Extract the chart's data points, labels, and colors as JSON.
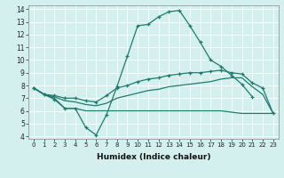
{
  "xlabel": "Humidex (Indice chaleur)",
  "xlim": [
    -0.5,
    23.5
  ],
  "ylim": [
    3.8,
    14.3
  ],
  "yticks": [
    4,
    5,
    6,
    7,
    8,
    9,
    10,
    11,
    12,
    13,
    14
  ],
  "xticks": [
    0,
    1,
    2,
    3,
    4,
    5,
    6,
    7,
    8,
    9,
    10,
    11,
    12,
    13,
    14,
    15,
    16,
    17,
    18,
    19,
    20,
    21,
    22,
    23
  ],
  "bg_color": "#d4f0ee",
  "line_color": "#1e7b6e",
  "grid_color": "#ffffff",
  "lines": [
    {
      "x": [
        0,
        1,
        2,
        3,
        4,
        5,
        6,
        7,
        8,
        9,
        10,
        11,
        12,
        13,
        14,
        15,
        16,
        17,
        18,
        19,
        20,
        21
      ],
      "y": [
        7.8,
        7.3,
        6.9,
        6.2,
        6.2,
        4.7,
        4.1,
        5.7,
        7.9,
        10.3,
        12.7,
        12.8,
        13.4,
        13.8,
        13.9,
        12.7,
        11.4,
        10.0,
        9.5,
        8.8,
        8.1,
        7.1
      ],
      "marker": "+"
    },
    {
      "x": [
        0,
        1,
        2,
        3,
        4,
        5,
        6,
        7,
        8,
        9,
        10,
        11,
        12,
        13,
        14,
        15,
        16,
        17,
        18,
        19,
        20,
        21,
        22,
        23
      ],
      "y": [
        7.8,
        7.3,
        7.1,
        6.8,
        6.7,
        6.5,
        6.4,
        6.6,
        7.0,
        7.2,
        7.4,
        7.6,
        7.7,
        7.9,
        8.0,
        8.1,
        8.2,
        8.3,
        8.5,
        8.6,
        8.6,
        7.9,
        7.3,
        5.8
      ],
      "marker": null
    },
    {
      "x": [
        0,
        1,
        2,
        3,
        4,
        5,
        6,
        7,
        8,
        9,
        10,
        11,
        12,
        13,
        14,
        15,
        16,
        17,
        18,
        19,
        20,
        21,
        22,
        23
      ],
      "y": [
        7.8,
        7.3,
        7.2,
        7.0,
        7.0,
        6.8,
        6.7,
        7.2,
        7.8,
        8.0,
        8.3,
        8.5,
        8.6,
        8.8,
        8.9,
        9.0,
        9.0,
        9.1,
        9.2,
        9.0,
        8.9,
        8.2,
        7.8,
        5.8
      ],
      "marker": "+"
    },
    {
      "x": [
        0,
        1,
        2,
        3,
        4,
        5,
        6,
        7,
        8,
        9,
        10,
        11,
        12,
        13,
        14,
        15,
        16,
        17,
        18,
        19,
        20,
        21,
        22,
        23
      ],
      "y": [
        7.8,
        7.3,
        7.0,
        6.2,
        6.2,
        6.0,
        6.0,
        6.0,
        6.0,
        6.0,
        6.0,
        6.0,
        6.0,
        6.0,
        6.0,
        6.0,
        6.0,
        6.0,
        6.0,
        5.9,
        5.8,
        5.8,
        5.8,
        5.8
      ],
      "marker": null
    }
  ],
  "xlabel_fontsize": 6.5,
  "tick_fontsize_x": 5.0,
  "tick_fontsize_y": 5.5
}
